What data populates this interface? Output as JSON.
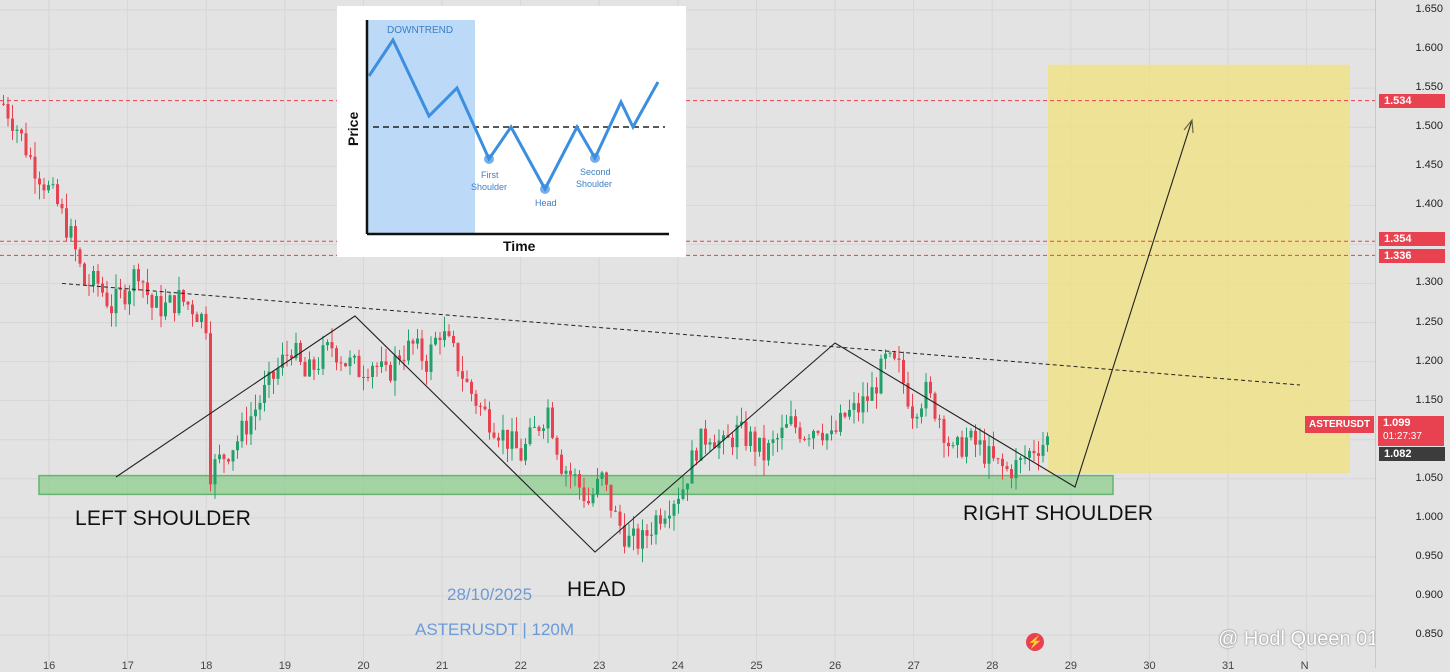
{
  "symbol": "ASTERUSDT",
  "watermark": {
    "date": "28/10/2025",
    "symbol_tf": "ASTERUSDT | 120M"
  },
  "last_price": {
    "price": "1.099",
    "countdown": "01:27:37"
  },
  "levels": [
    {
      "value": 1.534,
      "label": "1.534",
      "color": "#e8414f"
    },
    {
      "value": 1.354,
      "label": "1.354",
      "color": "#e8414f"
    },
    {
      "value": 1.336,
      "label": "1.336",
      "color": "#e8414f"
    },
    {
      "value": 1.082,
      "label": "1.082",
      "color": "#3c3c3c"
    }
  ],
  "labels": {
    "left": "LEFT SHOULDER",
    "head": "HEAD",
    "right": "RIGHT SHOULDER"
  },
  "credit": "@ Hodl Queen 01",
  "inset": {
    "downtrend": "DOWNTREND",
    "ylabel": "Price",
    "xlabel": "Time",
    "first_shoulder": [
      "First",
      "Shoulder"
    ],
    "head": "Head",
    "second_shoulder": [
      "Second",
      "Shoulder"
    ]
  },
  "chart_data": {
    "type": "candlestick",
    "title": "",
    "ylabel": "",
    "y_range": [
      0.85,
      1.65
    ],
    "y_ticks": [
      "1.650",
      "1.600",
      "1.550",
      "1.500",
      "1.450",
      "1.400",
      "1.350",
      "1.300",
      "1.250",
      "1.200",
      "1.150",
      "1.100",
      "1.050",
      "1.000",
      "0.950",
      "0.900",
      "0.850"
    ],
    "x_ticks": [
      "16",
      "17",
      "18",
      "19",
      "20",
      "21",
      "22",
      "23",
      "24",
      "25",
      "26",
      "27",
      "28",
      "29",
      "30",
      "31",
      "N"
    ],
    "colors": {
      "up": "#22a06b",
      "down": "#e8414f"
    },
    "series": [
      {
        "name": "ASTERUSDT",
        "close_path": [
          [
            0,
            1.53
          ],
          [
            3,
            1.5
          ],
          [
            6,
            1.46
          ],
          [
            9,
            1.43
          ],
          [
            12,
            1.4
          ],
          [
            15,
            1.36
          ],
          [
            18,
            1.3
          ],
          [
            21,
            1.3
          ],
          [
            24,
            1.27
          ],
          [
            27,
            1.29
          ],
          [
            30,
            1.32
          ],
          [
            33,
            1.27
          ],
          [
            36,
            1.27
          ],
          [
            39,
            1.28
          ],
          [
            42,
            1.27
          ],
          [
            45,
            1.25
          ],
          [
            46,
            1.06
          ],
          [
            49,
            1.08
          ],
          [
            52,
            1.1
          ],
          [
            55,
            1.13
          ],
          [
            58,
            1.16
          ],
          [
            61,
            1.19
          ],
          [
            64,
            1.22
          ],
          [
            67,
            1.18
          ],
          [
            70,
            1.2
          ],
          [
            73,
            1.22
          ],
          [
            76,
            1.2
          ],
          [
            79,
            1.19
          ],
          [
            82,
            1.2
          ],
          [
            85,
            1.18
          ],
          [
            88,
            1.21
          ],
          [
            91,
            1.22
          ],
          [
            94,
            1.2
          ],
          [
            97,
            1.24
          ],
          [
            100,
            1.21
          ],
          [
            103,
            1.17
          ],
          [
            106,
            1.14
          ],
          [
            109,
            1.12
          ],
          [
            112,
            1.1
          ],
          [
            115,
            1.08
          ],
          [
            118,
            1.11
          ],
          [
            121,
            1.14
          ],
          [
            124,
            1.07
          ],
          [
            127,
            1.05
          ],
          [
            130,
            1.02
          ],
          [
            133,
            1.05
          ],
          [
            136,
            1.0
          ],
          [
            139,
            0.97
          ],
          [
            142,
            0.97
          ],
          [
            145,
            1.0
          ],
          [
            148,
            1.02
          ],
          [
            151,
            1.04
          ],
          [
            154,
            1.09
          ],
          [
            157,
            1.11
          ],
          [
            160,
            1.09
          ],
          [
            163,
            1.11
          ],
          [
            166,
            1.1
          ],
          [
            169,
            1.08
          ],
          [
            172,
            1.1
          ],
          [
            175,
            1.12
          ],
          [
            178,
            1.11
          ],
          [
            181,
            1.12
          ],
          [
            184,
            1.1
          ],
          [
            187,
            1.13
          ],
          [
            190,
            1.14
          ],
          [
            193,
            1.16
          ],
          [
            196,
            1.2
          ],
          [
            199,
            1.19
          ],
          [
            202,
            1.14
          ],
          [
            205,
            1.16
          ],
          [
            208,
            1.13
          ],
          [
            211,
            1.08
          ],
          [
            214,
            1.1
          ],
          [
            217,
            1.09
          ],
          [
            220,
            1.07
          ],
          [
            223,
            1.06
          ],
          [
            226,
            1.07
          ],
          [
            229,
            1.09
          ],
          [
            232,
            1.1
          ]
        ]
      }
    ],
    "annotations": [
      {
        "text": "LEFT SHOULDER"
      },
      {
        "text": "HEAD"
      },
      {
        "text": "RIGHT SHOULDER"
      }
    ],
    "horizontal_levels": [
      1.534,
      1.354,
      1.336,
      1.082
    ],
    "support_zone": [
      1.03,
      1.054
    ],
    "target_zone": [
      1.057,
      1.58
    ],
    "neckline": {
      "from": [
        1.3,
        "16"
      ],
      "to": [
        1.17,
        "29"
      ]
    },
    "grid": true,
    "legend": "none"
  }
}
